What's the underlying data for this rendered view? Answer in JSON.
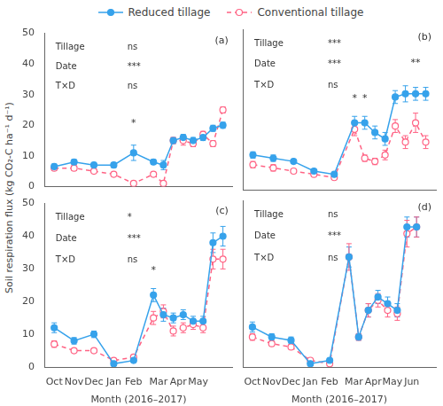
{
  "chart_data": [
    {
      "type": "line",
      "title": "(a)",
      "x": [
        0,
        1,
        2,
        3,
        4,
        5,
        5.5,
        6,
        6.5,
        7,
        7.5,
        8,
        8.5
      ],
      "series": [
        {
          "name": "Reduced tillage",
          "color": "#36a2eb",
          "marker": "circle",
          "line_style": "solid",
          "values": [
            6.5,
            8,
            7,
            7,
            11,
            8,
            7,
            15,
            16,
            15,
            16,
            19,
            20
          ],
          "errors": [
            0.8,
            0.8,
            0.8,
            0.8,
            2.5,
            0.8,
            1.5,
            1,
            1,
            1,
            1,
            1,
            1
          ]
        },
        {
          "name": "Conventional tillage",
          "color": "#ff6384",
          "marker": "open_circle",
          "line_style": "dashed",
          "values": [
            6,
            6,
            5,
            4,
            1,
            4,
            1,
            15,
            15,
            14,
            17,
            14,
            25
          ],
          "errors": [
            0.8,
            0.8,
            0.5,
            0.5,
            0.5,
            0.5,
            0.5,
            1,
            1.5,
            1,
            1,
            1,
            1
          ]
        }
      ],
      "stats": [
        [
          "Tillage",
          "ns"
        ],
        [
          "Date",
          "***"
        ],
        [
          "T×D",
          "ns"
        ]
      ],
      "annotations": [
        {
          "text": "*",
          "x": 4,
          "y": 19
        }
      ],
      "y_label": "Soil respiration flux (kg CO₂-C ha⁻¹ d⁻¹)",
      "xlim": [
        -0.5,
        9.0
      ],
      "xticks": [
        {
          "value": 0,
          "label": "Oct"
        },
        {
          "value": 1,
          "label": "Nov"
        },
        {
          "value": 2,
          "label": "Dec"
        },
        {
          "value": 3,
          "label": "Jan"
        },
        {
          "value": 4,
          "label": "Feb"
        },
        {
          "value": 5.25,
          "label": "Mar"
        },
        {
          "value": 6.25,
          "label": "Apr"
        },
        {
          "value": 7.25,
          "label": "May"
        },
        {
          "value": 8.25,
          "label": null
        }
      ],
      "ylim": [
        0,
        50
      ],
      "yticks": [
        0,
        10,
        20,
        30,
        40,
        50
      ],
      "grid": false,
      "legend": "top",
      "tick_labels": "y"
    },
    {
      "type": "line",
      "title": "(b)",
      "x": [
        0,
        1,
        2,
        3,
        4,
        5,
        5.5,
        6,
        6.5,
        7,
        7.5,
        8,
        8.5
      ],
      "series": [
        {
          "name": "Reduced tillage",
          "color": "#36a2eb",
          "marker": "circle",
          "line_style": "solid",
          "values": [
            11,
            10,
            9,
            6,
            5,
            21,
            21,
            18,
            16,
            29,
            30,
            30,
            30
          ],
          "errors": [
            1,
            1,
            0.5,
            0.5,
            0.5,
            2,
            2,
            2,
            2,
            2,
            2.5,
            2,
            2
          ]
        },
        {
          "name": "Conventional tillage",
          "color": "#ff6384",
          "marker": "open_circle",
          "line_style": "dashed",
          "values": [
            8,
            7,
            6,
            5,
            4,
            19,
            10,
            9,
            11,
            20,
            15,
            21,
            15
          ],
          "errors": [
            1,
            1,
            0.5,
            0.5,
            0.5,
            2,
            1,
            1,
            1.5,
            2,
            2,
            3,
            2
          ]
        }
      ],
      "stats": [
        [
          "Tillage",
          "***"
        ],
        [
          "Date",
          "***"
        ],
        [
          "T×D",
          "ns"
        ]
      ],
      "annotations": [
        {
          "text": "*",
          "x": 5,
          "y": 27
        },
        {
          "text": "*",
          "x": 5.5,
          "y": 27
        },
        {
          "text": "**",
          "x": 8,
          "y": 38
        }
      ],
      "xlim": [
        -0.5,
        9.0
      ],
      "xticks": [
        {
          "value": 0,
          "label": "Oct"
        },
        {
          "value": 1,
          "label": "Nov"
        },
        {
          "value": 2,
          "label": "Dec"
        },
        {
          "value": 3,
          "label": "Jan"
        },
        {
          "value": 4,
          "label": "Feb"
        },
        {
          "value": 5.25,
          "label": "Mar"
        },
        {
          "value": 6.25,
          "label": "Apr"
        },
        {
          "value": 7.25,
          "label": "May"
        },
        {
          "value": 8.25,
          "label": null
        }
      ],
      "ylim": [
        0,
        50
      ],
      "yticks": [
        0,
        10,
        20,
        30,
        40,
        50
      ],
      "grid": false,
      "tick_labels": false
    },
    {
      "type": "line",
      "title": "(c)",
      "x": [
        0,
        1,
        2,
        3,
        4,
        5,
        5.5,
        6,
        6.5,
        7,
        7.5,
        8,
        8.5
      ],
      "series": [
        {
          "name": "Reduced tillage",
          "color": "#36a2eb",
          "marker": "circle",
          "line_style": "solid",
          "values": [
            12,
            8,
            10,
            1,
            2,
            22,
            16,
            15,
            16,
            14,
            14,
            38,
            40
          ],
          "errors": [
            1.5,
            1,
            1,
            0.5,
            0.5,
            2,
            2,
            1.5,
            1.5,
            1.5,
            1.5,
            3,
            3
          ]
        },
        {
          "name": "Conventional tillage",
          "color": "#ff6384",
          "marker": "open_circle",
          "line_style": "dashed",
          "values": [
            7,
            5,
            5,
            2,
            3,
            15,
            17,
            11,
            12,
            13,
            12,
            33,
            33
          ],
          "errors": [
            1,
            0.5,
            0.5,
            0.5,
            0.5,
            2,
            2,
            1.5,
            1.5,
            1.5,
            1.5,
            3,
            3
          ]
        }
      ],
      "stats": [
        [
          "Tillage",
          "*"
        ],
        [
          "Date",
          "***"
        ],
        [
          "T×D",
          "ns"
        ]
      ],
      "annotations": [
        {
          "text": "*",
          "x": 5,
          "y": 28
        }
      ],
      "x_label": "Month (2016–2017)",
      "xlim": [
        -0.5,
        9.0
      ],
      "xticks": [
        {
          "value": 0,
          "label": "Oct"
        },
        {
          "value": 1,
          "label": "Nov"
        },
        {
          "value": 2,
          "label": "Dec"
        },
        {
          "value": 3,
          "label": "Jan"
        },
        {
          "value": 4,
          "label": "Feb"
        },
        {
          "value": 5.25,
          "label": "Mar"
        },
        {
          "value": 6.25,
          "label": "Apr"
        },
        {
          "value": 7.25,
          "label": "May"
        },
        {
          "value": 8.25,
          "label": null
        }
      ],
      "ylim": [
        0,
        50
      ],
      "yticks": [
        0,
        10,
        20,
        30,
        40,
        50
      ],
      "grid": false
    },
    {
      "type": "line",
      "title": "(d)",
      "x": [
        0,
        1,
        2,
        3,
        4,
        5,
        5.5,
        6,
        6.5,
        7,
        7.5,
        8,
        8.5
      ],
      "series": [
        {
          "name": "Reduced tillage",
          "color": "#36a2eb",
          "marker": "circle",
          "line_style": "solid",
          "values": [
            12,
            9,
            8,
            1,
            2,
            33,
            9,
            17,
            21,
            19,
            17,
            42,
            42
          ],
          "errors": [
            1.5,
            1,
            1,
            0.5,
            0.5,
            3,
            1,
            2,
            2,
            2,
            2,
            3,
            3
          ]
        },
        {
          "name": "Conventional tillage",
          "color": "#ff6384",
          "marker": "open_circle",
          "line_style": "dashed",
          "values": [
            9,
            7,
            6,
            2,
            1,
            33,
            9,
            17,
            20,
            17,
            16,
            40,
            42
          ],
          "errors": [
            1,
            0.5,
            0.5,
            0.5,
            0.5,
            4,
            1,
            2,
            2,
            2,
            2,
            4,
            3
          ]
        }
      ],
      "stats": [
        [
          "Tillage",
          "ns"
        ],
        [
          "Date",
          "***"
        ],
        [
          "T×D",
          "ns"
        ]
      ],
      "annotations": [],
      "x_label": "Month (2016–2017)",
      "xlim": [
        -0.5,
        9.5
      ],
      "xticks": [
        {
          "value": 0,
          "label": "Oct"
        },
        {
          "value": 1,
          "label": "Nov"
        },
        {
          "value": 2,
          "label": "Dec"
        },
        {
          "value": 3,
          "label": "Jan"
        },
        {
          "value": 4,
          "label": "Feb"
        },
        {
          "value": 5.25,
          "label": "Mar"
        },
        {
          "value": 6.25,
          "label": "Apr"
        },
        {
          "value": 7.25,
          "label": "May"
        },
        {
          "value": 8.25,
          "label": "Jun"
        },
        {
          "value": 8.75,
          "label": null
        }
      ],
      "ylim": [
        0,
        50
      ],
      "yticks": [
        0,
        10,
        20,
        30,
        40,
        50
      ],
      "grid": false,
      "tick_labels": "x"
    }
  ]
}
